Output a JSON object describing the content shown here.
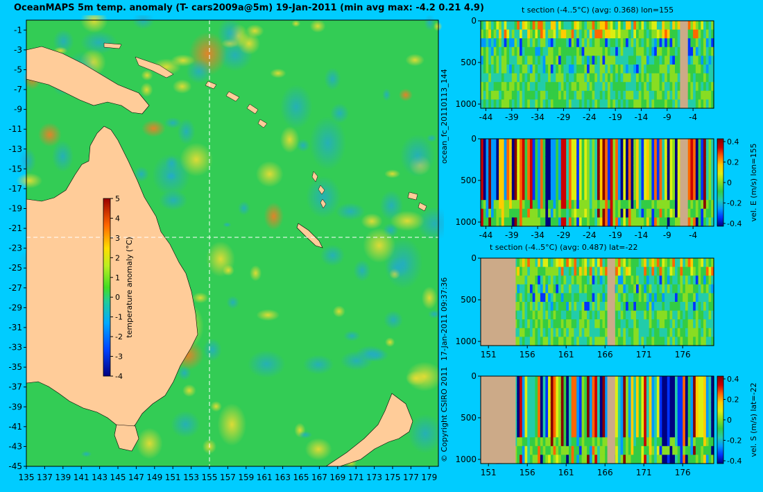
{
  "map": {
    "title": "OceanMAPS 5m temp. anomaly (T- cars2009a@5m) 19-Jan-2011 (min avg max: -4.2 0.21 4.9)",
    "colorbar_label": "temperature anomaly (°C)",
    "colorbar_ticks": [
      "5",
      "4",
      "3",
      "2",
      "1",
      "0",
      "-1",
      "-2",
      "-3",
      "-4"
    ],
    "colors": {
      "land": "#ffcc99",
      "ocean_mid": "#33cc55",
      "ocean_warm": "#ccdd22",
      "ocean_cool": "#22bb88",
      "crosshair": "#ffffff"
    }
  },
  "side_texts": {
    "run_id": "ocean_fc_20110113_144",
    "run_time": "17-Jan-2011 09:37:36",
    "copyright": "© Copyright CSIRO 2011"
  },
  "panels": [
    {
      "id": "p1",
      "title": "t section (-4..5°C) (avg: 0.368) lon=155",
      "colorbar_label": ""
    },
    {
      "id": "p2",
      "title": "",
      "colorbar_label": "vel. E (m/s) lon=155"
    },
    {
      "id": "p3",
      "title": "t section (-4..5°C) (avg: 0.487) lat=-22",
      "colorbar_label": ""
    },
    {
      "id": "p4",
      "title": "",
      "colorbar_label": "vel. S (m/s) lat=-22"
    }
  ],
  "chart_data": [
    {
      "type": "heatmap",
      "title": "OceanMAPS 5m temp. anomaly (T- cars2009a@5m) 19-Jan-2011 (min avg max: -4.2 0.21 4.9)",
      "x_ticks": [
        135,
        137,
        139,
        141,
        143,
        145,
        147,
        149,
        151,
        153,
        155,
        157,
        159,
        161,
        163,
        165,
        167,
        169,
        171,
        173,
        175,
        177,
        179
      ],
      "y_ticks": [
        -1,
        -3,
        -5,
        -7,
        -9,
        -11,
        -13,
        -15,
        -17,
        -19,
        -21,
        -23,
        -25,
        -27,
        -29,
        -31,
        -33,
        -35,
        -37,
        -39,
        -41,
        -43,
        -45
      ],
      "xlim": [
        135,
        180
      ],
      "ylim": [
        -45,
        0
      ],
      "crosshair": {
        "lon": 155,
        "lat": -22
      },
      "stats": {
        "min": -4.2,
        "avg": 0.21,
        "max": 4.9
      },
      "colorbar": {
        "label": "temperature anomaly (°C)",
        "range": [
          -4,
          5
        ],
        "ticks": [
          -4,
          -3,
          -2,
          -1,
          0,
          1,
          2,
          3,
          4,
          5
        ]
      }
    },
    {
      "type": "heatmap",
      "title": "t section (-4..5°C) (avg: 0.368) lon=155",
      "x_ticks": [
        "-44",
        "-39",
        "-34",
        "-29",
        "-24",
        "-19",
        "-14",
        "-9",
        "-4"
      ],
      "y_ticks": [
        "0",
        "500",
        "1000"
      ],
      "xlim": [
        -45,
        0
      ],
      "ylim": [
        1050,
        0
      ],
      "land_x": [
        -6.5,
        -5
      ]
    },
    {
      "type": "heatmap",
      "title": "",
      "x_ticks": [
        "-44",
        "-39",
        "-34",
        "-29",
        "-24",
        "-19",
        "-14",
        "-9",
        "-4"
      ],
      "y_ticks": [
        "0",
        "500",
        "1000"
      ],
      "xlim": [
        -45,
        0
      ],
      "ylim": [
        1050,
        0
      ],
      "land_x": [
        -6.5,
        -5
      ],
      "colorbar": {
        "label": "vel. E (m/s) lon=155",
        "ticks": [
          "0.4",
          "0.2",
          "0",
          "-0.2",
          "-0.4"
        ],
        "range": [
          -0.4,
          0.4
        ]
      }
    },
    {
      "type": "heatmap",
      "title": "t section (-4..5°C) (avg: 0.487) lat=-22",
      "x_ticks": [
        "151",
        "156",
        "161",
        "166",
        "171",
        "176"
      ],
      "y_ticks": [
        "0",
        "500",
        "1000"
      ],
      "xlim": [
        150,
        180
      ],
      "ylim": [
        1050,
        0
      ],
      "land_x": [
        [
          150,
          154.5
        ],
        [
          166.3,
          167.3
        ]
      ]
    },
    {
      "type": "heatmap",
      "title": "",
      "x_ticks": [
        "151",
        "156",
        "161",
        "166",
        "171",
        "176"
      ],
      "y_ticks": [
        "0",
        "500",
        "1000"
      ],
      "xlim": [
        150,
        180
      ],
      "ylim": [
        1050,
        0
      ],
      "land_x": [
        [
          150,
          154.5
        ],
        [
          166.3,
          167.3
        ]
      ],
      "colorbar": {
        "label": "vel. S (m/s) lat=-22",
        "ticks": [
          "0.4",
          "0.2",
          "0",
          "-0.2",
          "-0.4"
        ],
        "range": [
          -0.4,
          0.4
        ]
      }
    }
  ]
}
